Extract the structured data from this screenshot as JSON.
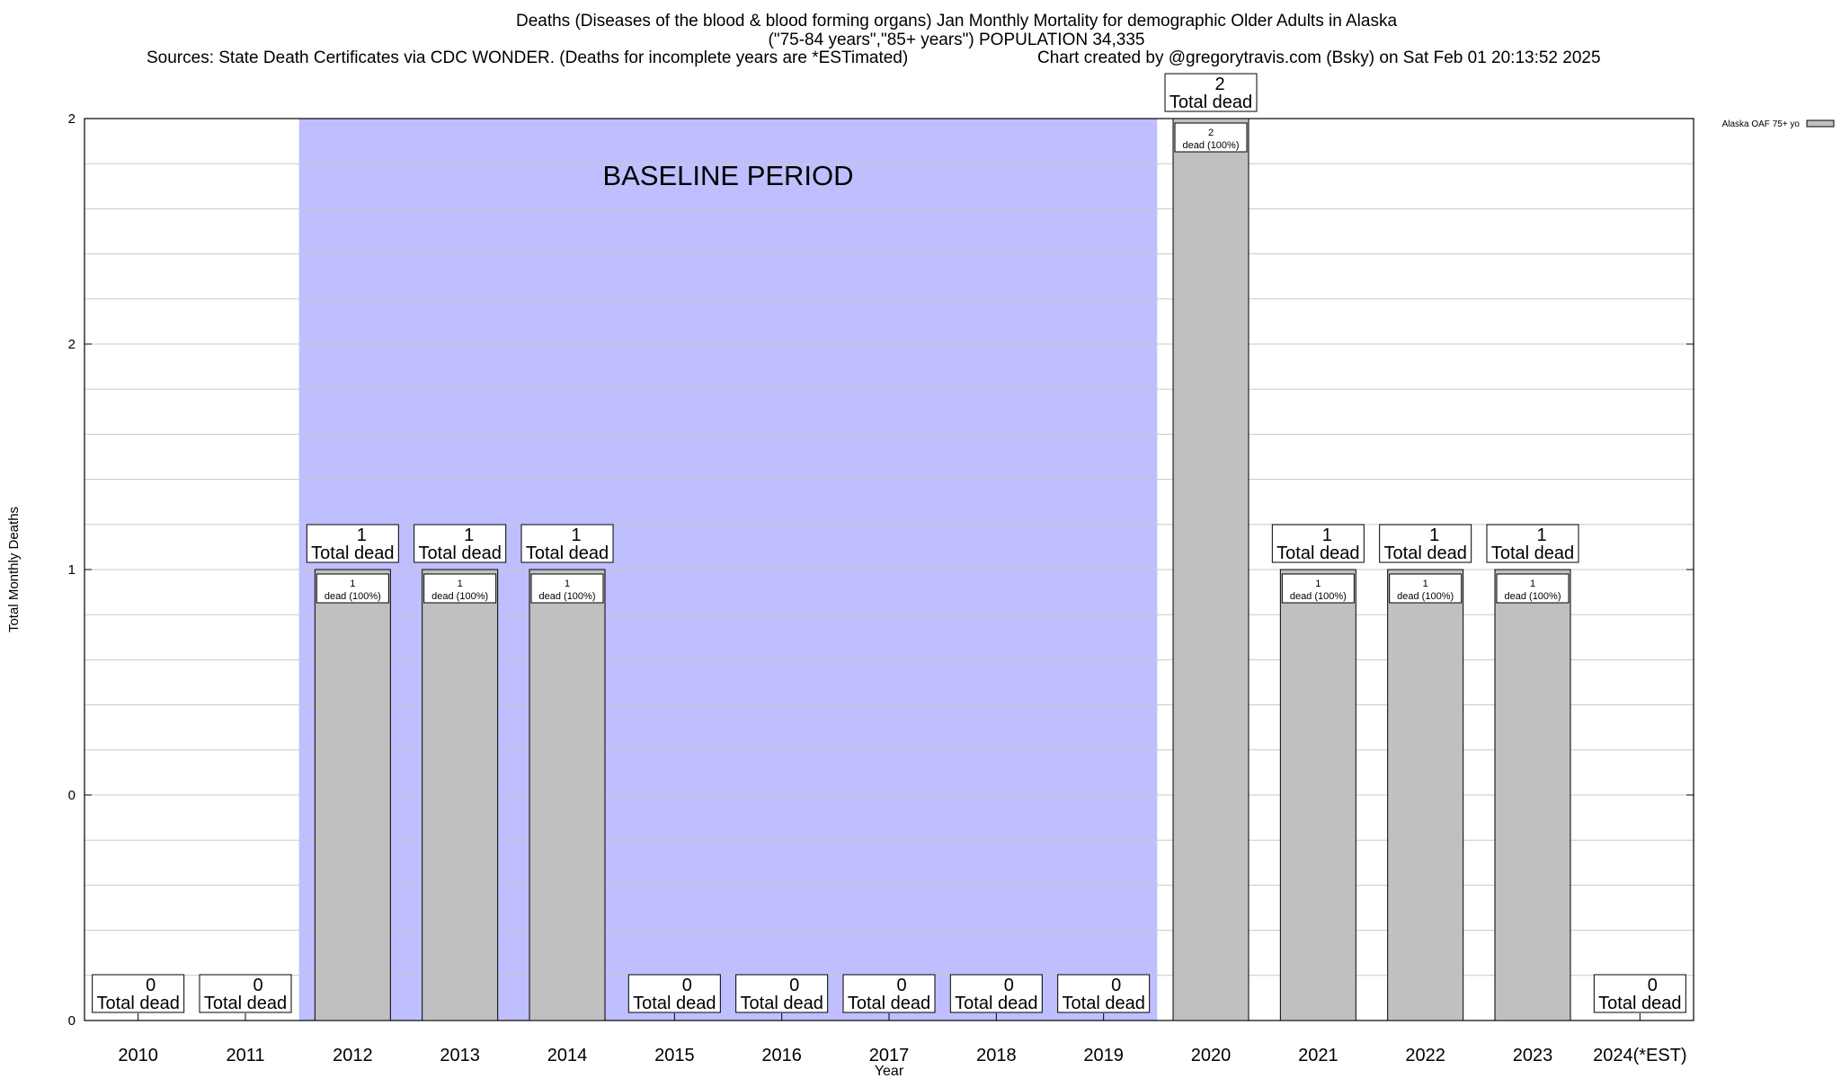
{
  "header": {
    "title_line1": "Deaths (Diseases of the blood & blood forming organs) Jan Monthly Mortality for demographic Older Adults in Alaska",
    "title_line2": "(\"75-84 years\",\"85+ years\") POPULATION 34,335",
    "sources": "Sources: State Death Certificates via CDC WONDER. (Deaths for incomplete years are *ESTimated)",
    "credit": "Chart created by @gregorytravis.com (Bsky) on Sat Feb 01 20:13:52 2025"
  },
  "chart_data": {
    "type": "bar",
    "xlabel": "Year",
    "ylabel": "Total Monthly Deaths",
    "ylim": [
      0,
      2
    ],
    "y_tick_labels": [
      "0",
      "0",
      "1",
      "2",
      "2"
    ],
    "categories": [
      "2010",
      "2011",
      "2012",
      "2013",
      "2014",
      "2015",
      "2016",
      "2017",
      "2018",
      "2019",
      "2020",
      "2021",
      "2022",
      "2023",
      "2024(*EST)"
    ],
    "values": [
      0,
      0,
      1,
      1,
      1,
      0,
      0,
      0,
      0,
      0,
      2,
      1,
      1,
      1,
      0
    ],
    "total_label_suffix": "Total dead",
    "inner_label_suffix": "dead (100%)",
    "baseline": {
      "label": "BASELINE PERIOD",
      "from": "2012",
      "to": "2019",
      "color": "#bfbfff"
    },
    "bar_color": "#c0c0c0",
    "grid": true,
    "legend": {
      "position": "top-right",
      "entries": [
        {
          "name": "Alaska OAF 75+ yo",
          "color": "#c0c0c0"
        }
      ]
    }
  }
}
